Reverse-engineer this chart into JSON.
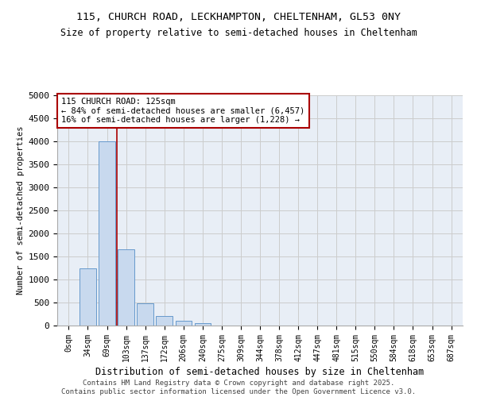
{
  "title1": "115, CHURCH ROAD, LECKHAMPTON, CHELTENHAM, GL53 0NY",
  "title2": "Size of property relative to semi-detached houses in Cheltenham",
  "xlabel": "Distribution of semi-detached houses by size in Cheltenham",
  "ylabel": "Number of semi-detached properties",
  "categories": [
    "0sqm",
    "34sqm",
    "69sqm",
    "103sqm",
    "137sqm",
    "172sqm",
    "206sqm",
    "240sqm",
    "275sqm",
    "309sqm",
    "344sqm",
    "378sqm",
    "412sqm",
    "447sqm",
    "481sqm",
    "515sqm",
    "550sqm",
    "584sqm",
    "618sqm",
    "653sqm",
    "687sqm"
  ],
  "values": [
    0,
    1250,
    4000,
    1650,
    480,
    200,
    100,
    55,
    5,
    0,
    0,
    0,
    0,
    0,
    0,
    0,
    0,
    0,
    0,
    0,
    0
  ],
  "bar_color": "#c8d9ee",
  "bar_edge_color": "#6699cc",
  "property_label": "115 CHURCH ROAD: 125sqm",
  "annotation_line1": "← 84% of semi-detached houses are smaller (6,457)",
  "annotation_line2": "16% of semi-detached houses are larger (1,228) →",
  "annotation_box_color": "#aa0000",
  "vline_color": "#aa0000",
  "vline_x": 2.5,
  "ylim": [
    0,
    5000
  ],
  "yticks": [
    0,
    500,
    1000,
    1500,
    2000,
    2500,
    3000,
    3500,
    4000,
    4500,
    5000
  ],
  "grid_color": "#cccccc",
  "background_color": "#e8eef6",
  "footer1": "Contains HM Land Registry data © Crown copyright and database right 2025.",
  "footer2": "Contains public sector information licensed under the Open Government Licence v3.0."
}
